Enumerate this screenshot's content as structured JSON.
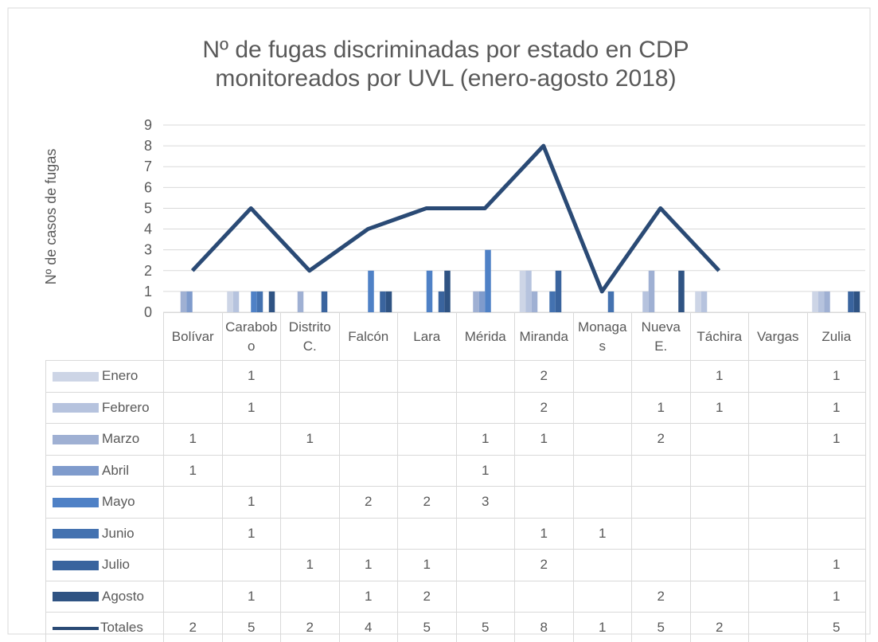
{
  "chart_data": {
    "type": "bar",
    "title_lines": [
      "Nº de fugas discriminadas por estado en CDP",
      "monitoreados por UVL (enero-agosto 2018)"
    ],
    "y_label": "Nº de casos de fugas",
    "categories": [
      "Bolívar",
      "Carabobo",
      "Distrito C.",
      "Falcón",
      "Lara",
      "Mérida",
      "Miranda",
      "Monagas",
      "Nueva E.",
      "Táchira",
      "Vargas",
      "Zulia"
    ],
    "ylim": [
      0,
      9
    ],
    "yticks": [
      0,
      1,
      2,
      3,
      4,
      5,
      6,
      7,
      8,
      9
    ],
    "grid": true,
    "series": [
      {
        "name": "Enero",
        "color": "#cdd5e6",
        "values": [
          null,
          1,
          null,
          null,
          null,
          null,
          2,
          null,
          null,
          1,
          null,
          1
        ]
      },
      {
        "name": "Febrero",
        "color": "#b6c3de",
        "values": [
          null,
          1,
          null,
          null,
          null,
          null,
          2,
          null,
          1,
          1,
          null,
          1
        ]
      },
      {
        "name": "Marzo",
        "color": "#9fb0d3",
        "values": [
          1,
          null,
          1,
          null,
          null,
          1,
          1,
          null,
          2,
          null,
          null,
          1
        ]
      },
      {
        "name": "Abril",
        "color": "#7f9bcc",
        "values": [
          1,
          null,
          null,
          null,
          null,
          1,
          null,
          null,
          null,
          null,
          null,
          null
        ]
      },
      {
        "name": "Mayo",
        "color": "#4f81c6",
        "values": [
          null,
          1,
          null,
          2,
          2,
          3,
          null,
          null,
          null,
          null,
          null,
          null
        ]
      },
      {
        "name": "Junio",
        "color": "#4472b0",
        "values": [
          null,
          1,
          null,
          null,
          null,
          null,
          1,
          1,
          null,
          null,
          null,
          null
        ]
      },
      {
        "name": "Julio",
        "color": "#3a649e",
        "values": [
          null,
          null,
          1,
          1,
          1,
          null,
          2,
          null,
          null,
          null,
          null,
          1
        ]
      },
      {
        "name": "Agosto",
        "color": "#2f5383",
        "values": [
          null,
          1,
          null,
          1,
          2,
          null,
          null,
          null,
          2,
          null,
          null,
          1
        ]
      },
      {
        "name": "Totales",
        "color": "#2a4a75",
        "type": "line",
        "values": [
          2,
          5,
          2,
          4,
          5,
          5,
          8,
          1,
          5,
          2,
          null,
          5
        ]
      }
    ]
  }
}
